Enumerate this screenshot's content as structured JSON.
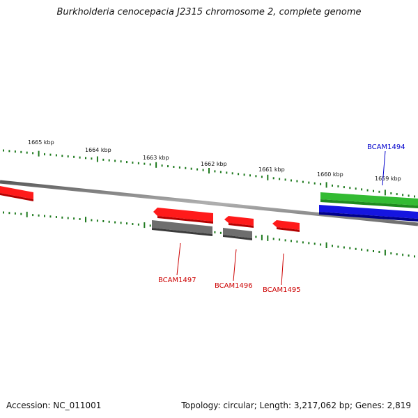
{
  "title": "Burkholderia cenocepacia J2315 chromosome 2, complete genome",
  "accession": "Accession: NC_011001",
  "summary": "Topology: circular; Length: 3,217,062 bp; Genes: 2,819",
  "colors": {
    "backbone": "#8a8a8a",
    "tick": "#1e7a1e",
    "red_gene": "#ff1a1a",
    "green_gene": "#33bb33",
    "blue_gene": "#1515e0",
    "gray_gene": "#6e6e6e",
    "red_label": "#cc0000",
    "blue_label": "#0000cc"
  },
  "kbp_labels": [
    "1665 kbp",
    "1664 kbp",
    "1663 kbp",
    "1662 kbp",
    "1661 kbp",
    "1660 kbp",
    "1659 kbp"
  ],
  "gene_labels": [
    "BCAM1494",
    "BCAM1497",
    "BCAM1496",
    "BCAM1495"
  ]
}
